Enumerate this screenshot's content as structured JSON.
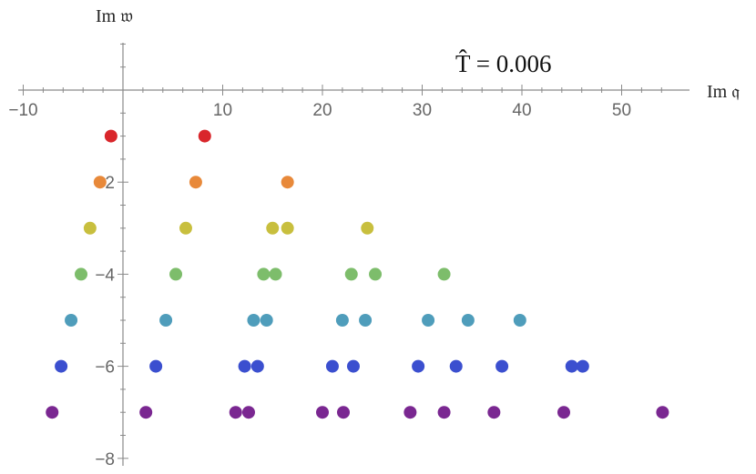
{
  "chart_data": {
    "type": "scatter",
    "xlabel": "Im 𝔮",
    "ylabel": "Im 𝔴",
    "annotation": "T̂ = 0.006",
    "xlim": [
      -10,
      55
    ],
    "ylim": [
      -8,
      1
    ],
    "x_ticks": [
      "−10",
      "10",
      "20",
      "30",
      "40",
      "50"
    ],
    "x_tick_values": [
      -10,
      10,
      20,
      30,
      40,
      50
    ],
    "y_ticks": [
      "−2",
      "−4",
      "−6",
      "−8"
    ],
    "y_tick_values": [
      -2,
      -4,
      -6,
      -8
    ],
    "grid": false,
    "series": [
      {
        "color": "#d9262b",
        "points": [
          [
            -1.2,
            -1
          ],
          [
            8.2,
            -1
          ]
        ]
      },
      {
        "color": "#e8893a",
        "points": [
          [
            -2.3,
            -2
          ],
          [
            7.3,
            -2
          ],
          [
            16.5,
            -2
          ]
        ]
      },
      {
        "color": "#c8bf3e",
        "points": [
          [
            -3.3,
            -3
          ],
          [
            6.3,
            -3
          ],
          [
            15.0,
            -3
          ],
          [
            16.5,
            -3
          ],
          [
            24.5,
            -3
          ]
        ]
      },
      {
        "color": "#7dbd6b",
        "points": [
          [
            -4.2,
            -4
          ],
          [
            5.3,
            -4
          ],
          [
            14.1,
            -4
          ],
          [
            15.3,
            -4
          ],
          [
            22.9,
            -4
          ],
          [
            25.3,
            -4
          ],
          [
            32.2,
            -4
          ]
        ]
      },
      {
        "color": "#4f9dbb",
        "points": [
          [
            -5.2,
            -5
          ],
          [
            4.3,
            -5
          ],
          [
            13.1,
            -5
          ],
          [
            14.4,
            -5
          ],
          [
            22.0,
            -5
          ],
          [
            24.3,
            -5
          ],
          [
            30.6,
            -5
          ],
          [
            34.6,
            -5
          ],
          [
            39.8,
            -5
          ]
        ]
      },
      {
        "color": "#3b4fcf",
        "points": [
          [
            -6.2,
            -6
          ],
          [
            3.3,
            -6
          ],
          [
            12.2,
            -6
          ],
          [
            13.5,
            -6
          ],
          [
            21.0,
            -6
          ],
          [
            23.1,
            -6
          ],
          [
            29.6,
            -6
          ],
          [
            33.4,
            -6
          ],
          [
            38.0,
            -6
          ],
          [
            45.0,
            -6
          ],
          [
            46.1,
            -6
          ]
        ]
      },
      {
        "color": "#7a2791",
        "points": [
          [
            -7.1,
            -7
          ],
          [
            2.3,
            -7
          ],
          [
            11.3,
            -7
          ],
          [
            12.6,
            -7
          ],
          [
            20.0,
            -7
          ],
          [
            22.1,
            -7
          ],
          [
            28.8,
            -7
          ],
          [
            32.2,
            -7
          ],
          [
            37.2,
            -7
          ],
          [
            44.2,
            -7
          ],
          [
            54.1,
            -7
          ]
        ]
      }
    ]
  }
}
